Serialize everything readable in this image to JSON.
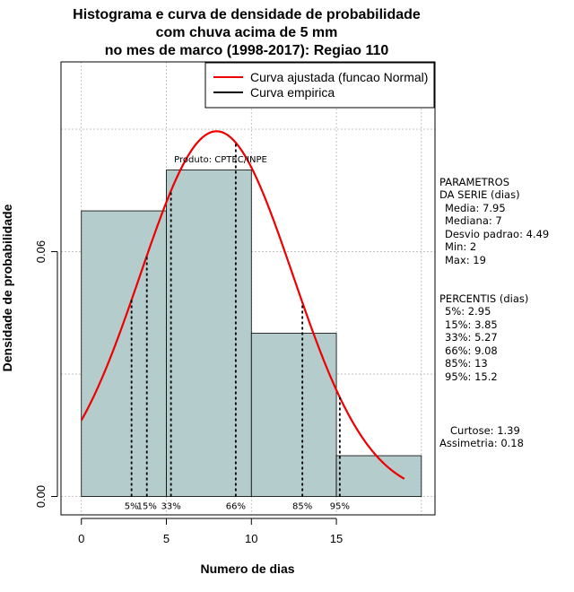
{
  "chart_data": {
    "type": "bar",
    "title": [
      "Histograma e curva de densidade de probabilidade",
      "com chuva acima de 5 mm",
      "no mes de marco (1998-2017): Regiao 110"
    ],
    "xlabel": "Numero de dias",
    "ylabel": "Densidade de probabilidade",
    "xlim": [
      -1.2,
      20.8
    ],
    "ylim": [
      -0.0045,
      0.1065
    ],
    "x_ticks": [
      0,
      5,
      10,
      15
    ],
    "y_ticks": [
      0.0,
      0.06
    ],
    "y_tick_labels": [
      "0.00",
      "0.06"
    ],
    "grid": true,
    "bins": [
      {
        "x0": 0,
        "x1": 5,
        "density": 0.07
      },
      {
        "x0": 5,
        "x1": 10,
        "density": 0.08
      },
      {
        "x0": 10,
        "x1": 15,
        "density": 0.04
      },
      {
        "x0": 15,
        "x1": 20,
        "density": 0.01
      }
    ],
    "normal_curve": {
      "mean": 7.95,
      "sd": 4.49,
      "x_from": 0,
      "x_to": 19,
      "color": "#ee0000"
    },
    "percentiles": [
      {
        "label": "5%",
        "value": 2.95
      },
      {
        "label": "15%",
        "value": 3.85
      },
      {
        "label": "33%",
        "value": 5.27
      },
      {
        "label": "66%",
        "value": 9.08
      },
      {
        "label": "85%",
        "value": 13
      },
      {
        "label": "95%",
        "value": 15.2
      }
    ],
    "legend": {
      "placement": "top-right",
      "entries": [
        {
          "label": "Curva ajustada (funcao Normal)",
          "color": "#ee0000"
        },
        {
          "label": "Curva empirica",
          "color": "#000000"
        }
      ]
    },
    "annotation": "Produto: CPTEC/INPE",
    "bar_color": "#b5cccc"
  },
  "side_panel": {
    "params_title": [
      "PARAMETROS",
      "DA SERIE (dias)"
    ],
    "params": [
      "Media: 7.95",
      "Mediana: 7",
      "Desvio padrao: 4.49",
      "Min: 2",
      "Max: 19"
    ],
    "percentis_title": "PERCENTIS (dias)",
    "percentis": [
      "5%: 2.95",
      "15%: 3.85",
      "33%: 5.27",
      "66%: 9.08",
      "85%: 13",
      "95%: 15.2"
    ],
    "curtose": "Curtose: 1.39",
    "assimetria": "Assimetria: 0.18"
  }
}
